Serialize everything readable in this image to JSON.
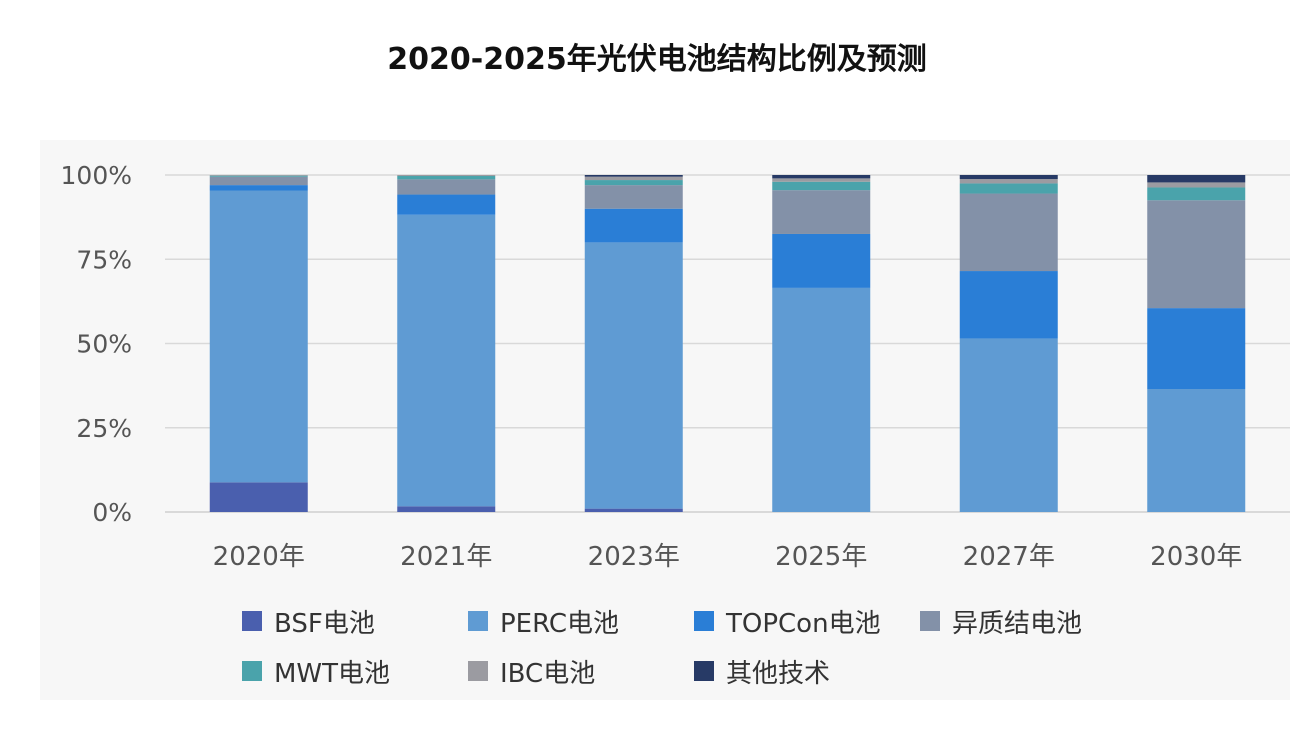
{
  "title": "2020-2025年光伏电池结构比例及预测",
  "colors": {
    "BSF": "#4a5fae",
    "PERC": "#5f9bd3",
    "TOPCon": "#2a7ed6",
    "HJT": "#8391a8",
    "MWT": "#4aa3ab",
    "IBC": "#9b9ba1",
    "Other": "#273a66",
    "grid": "#d9d9d9",
    "axis_text": "#555555"
  },
  "chart_data": {
    "type": "bar",
    "stacked": true,
    "title": "2020-2025年光伏电池结构比例及预测",
    "categories": [
      "2020年",
      "2021年",
      "2023年",
      "2025年",
      "2027年",
      "2030年"
    ],
    "y_ticks": [
      "0%",
      "25%",
      "50%",
      "75%",
      "100%"
    ],
    "ylim": [
      0,
      100
    ],
    "grid": true,
    "legend_position": "bottom",
    "series": [
      {
        "name": "BSF电池",
        "key": "BSF",
        "values": [
          8.8,
          1.7,
          1.0,
          0.0,
          0.0,
          0.0
        ]
      },
      {
        "name": "PERC电池",
        "key": "PERC",
        "values": [
          86.6,
          86.5,
          79.0,
          66.5,
          51.5,
          36.5
        ]
      },
      {
        "name": "TOPCon电池",
        "key": "TOPCon",
        "values": [
          1.6,
          6.0,
          10.0,
          16.0,
          20.0,
          24.0
        ]
      },
      {
        "name": "异质结电池",
        "key": "HJT",
        "values": [
          2.5,
          4.5,
          7.0,
          13.0,
          23.0,
          32.0
        ]
      },
      {
        "name": "MWT电池",
        "key": "MWT",
        "values": [
          0.3,
          1.0,
          1.5,
          2.5,
          3.0,
          3.8
        ]
      },
      {
        "name": "IBC电池",
        "key": "IBC",
        "values": [
          0.2,
          0.3,
          1.0,
          1.0,
          1.3,
          1.5
        ]
      },
      {
        "name": "其他技术",
        "key": "Other",
        "values": [
          0.0,
          0.0,
          0.5,
          1.0,
          1.2,
          2.2
        ]
      }
    ]
  }
}
